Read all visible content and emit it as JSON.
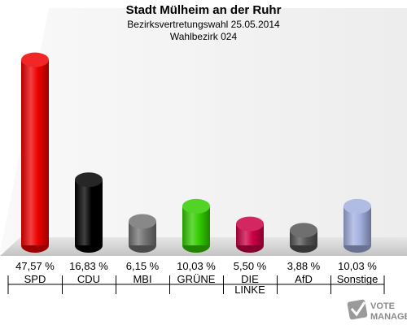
{
  "chart_data": {
    "type": "bar",
    "title": "Stadt Mülheim an der Ruhr",
    "subtitle": "Bezirksvertretungswahl 25.05.2014",
    "subtitle2": "Wahlbezirk 024",
    "categories": [
      "SPD",
      "CDU",
      "MBI",
      "GRÜNE",
      "DIE LINKE",
      "AfD",
      "Sonstige"
    ],
    "values": [
      47.57,
      16.83,
      6.15,
      10.03,
      5.5,
      3.88,
      10.03
    ],
    "value_labels": [
      "47,57 %",
      "16,83 %",
      "6,15 %",
      "10,03 %",
      "5,50 %",
      "3,88 %",
      "10,03 %"
    ],
    "colors": [
      "#ee0000",
      "#000000",
      "#737373",
      "#33cc00",
      "#cc0044",
      "#555555",
      "#a3b0e0"
    ],
    "ylim": [
      0,
      50
    ],
    "grid": false,
    "legend": "none"
  },
  "logo": {
    "line1": "VOTE",
    "line2": "MANAGER"
  }
}
